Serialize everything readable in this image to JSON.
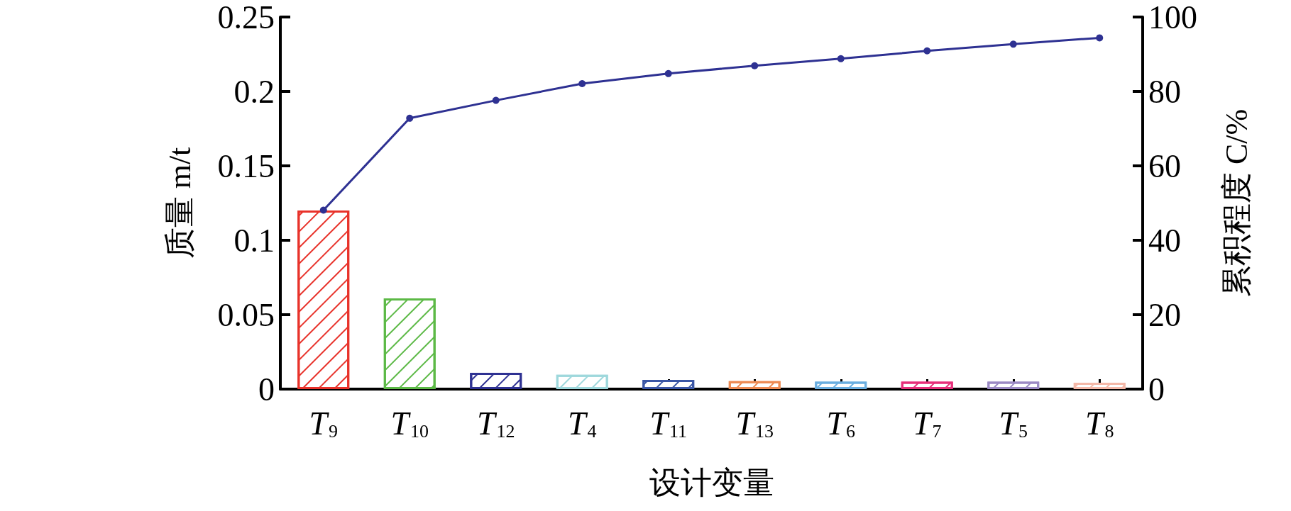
{
  "chart_data": {
    "type": "bar",
    "xlabel": "设计变量",
    "ylabel": "质量 m/t",
    "y2label": "累积程度 C/%",
    "categories": [
      "T$_{9}$",
      "T$_{10}$",
      "T$_{12}$",
      "T$_{4}$",
      "T$_{11}$",
      "T$_{13}$",
      "T$_{6}$",
      "T$_{7}$",
      "T$_{5}$",
      "T$_{8}$"
    ],
    "series": [
      {
        "values": [
          0.12,
          0.061,
          0.011,
          0.0097,
          0.0062,
          0.0053,
          0.005,
          0.005,
          0.005,
          0.0043
        ],
        "colors": [
          "#e8322a",
          "#5cb946",
          "#2e3192",
          "#9ed8dc",
          "#3a56a5",
          "#ee8a52",
          "#6aaee0",
          "#e6307a",
          "#9b8ac4",
          "#f4b8a8"
        ]
      },
      {
        "type": "line",
        "axis": "y2",
        "color": "#2e3192",
        "marker": "circle",
        "values": [
          48.1,
          72.8,
          77.6,
          82.1,
          84.8,
          86.9,
          88.8,
          90.9,
          92.7,
          94.4
        ]
      }
    ],
    "ylim": [
      0,
      0.25
    ],
    "yticks": [
      0,
      0.05,
      0.1,
      0.15,
      0.2,
      0.25
    ],
    "y2lim": [
      0,
      100
    ],
    "y2ticks": [
      0,
      20,
      40,
      60,
      80,
      100
    ],
    "grid": false
  }
}
